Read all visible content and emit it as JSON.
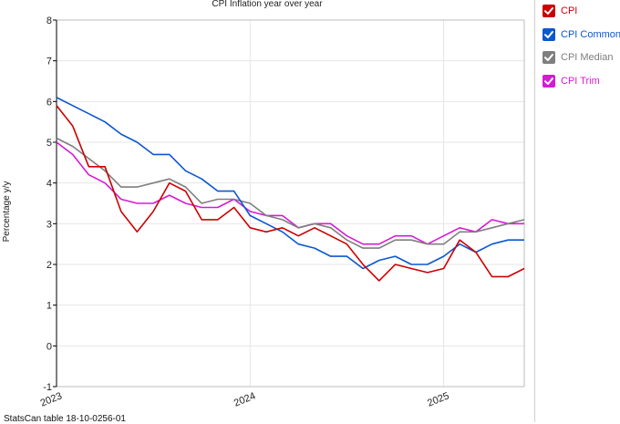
{
  "chart_data": {
    "type": "line",
    "title": "CPI Inflation year over year",
    "xlabel": "",
    "ylabel": "Percentage y/y",
    "x_ticks": [
      "2023",
      "2024",
      "2025"
    ],
    "y_ticks": [
      "-1",
      "0",
      "1",
      "2",
      "3",
      "4",
      "5",
      "6",
      "7",
      "8"
    ],
    "ylim": [
      -1,
      8
    ],
    "xlim": [
      "2023-01",
      "2025-06"
    ],
    "grid": true,
    "legend_position": "right",
    "x": [
      "2023-01",
      "2023-02",
      "2023-03",
      "2023-04",
      "2023-05",
      "2023-06",
      "2023-07",
      "2023-08",
      "2023-09",
      "2023-10",
      "2023-11",
      "2023-12",
      "2024-01",
      "2024-02",
      "2024-03",
      "2024-04",
      "2024-05",
      "2024-06",
      "2024-07",
      "2024-08",
      "2024-09",
      "2024-10",
      "2024-11",
      "2024-12",
      "2025-01",
      "2025-02",
      "2025-03",
      "2025-04",
      "2025-05",
      "2025-06"
    ],
    "series": [
      {
        "name": "CPI",
        "color": "#cc0000",
        "values": [
          5.9,
          5.4,
          4.4,
          4.4,
          3.3,
          2.8,
          3.3,
          4.0,
          3.8,
          3.1,
          3.1,
          3.4,
          2.9,
          2.8,
          2.9,
          2.7,
          2.9,
          2.7,
          2.5,
          2.0,
          1.6,
          2.0,
          1.9,
          1.8,
          1.9,
          2.6,
          2.3,
          1.7,
          1.7,
          1.9
        ]
      },
      {
        "name": "CPI Common",
        "color": "#0b57d0",
        "values": [
          6.1,
          5.9,
          5.7,
          5.5,
          5.2,
          5.0,
          4.7,
          4.7,
          4.3,
          4.1,
          3.8,
          3.8,
          3.2,
          3.0,
          2.8,
          2.5,
          2.4,
          2.2,
          2.2,
          1.9,
          2.1,
          2.2,
          2.0,
          2.0,
          2.2,
          2.5,
          2.3,
          2.5,
          2.6,
          2.6
        ]
      },
      {
        "name": "CPI Median",
        "color": "#7f7f7f",
        "values": [
          5.1,
          4.9,
          4.6,
          4.3,
          3.9,
          3.9,
          4.0,
          4.1,
          3.9,
          3.5,
          3.6,
          3.6,
          3.5,
          3.2,
          3.1,
          2.9,
          3.0,
          2.9,
          2.6,
          2.4,
          2.4,
          2.6,
          2.6,
          2.5,
          2.5,
          2.8,
          2.8,
          2.9,
          3.0,
          3.1
        ]
      },
      {
        "name": "CPI Trim",
        "color": "#d61ad6",
        "values": [
          5.0,
          4.7,
          4.2,
          4.0,
          3.6,
          3.5,
          3.5,
          3.7,
          3.5,
          3.4,
          3.4,
          3.6,
          3.3,
          3.2,
          3.2,
          2.9,
          3.0,
          3.0,
          2.7,
          2.5,
          2.5,
          2.7,
          2.7,
          2.5,
          2.7,
          2.9,
          2.8,
          3.1,
          3.0,
          3.0
        ]
      }
    ]
  },
  "legend": {
    "items": [
      {
        "label": "CPI",
        "color": "#cc0000"
      },
      {
        "label": "CPI Common",
        "color": "#0b57d0"
      },
      {
        "label": "CPI Median",
        "color": "#7f7f7f"
      },
      {
        "label": "CPI Trim",
        "color": "#d61ad6"
      }
    ]
  },
  "footer": {
    "source": "StatsCan table 18-10-0256-01"
  }
}
